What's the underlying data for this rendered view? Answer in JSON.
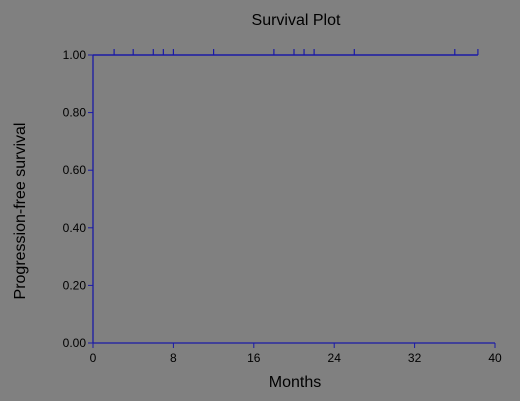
{
  "chart_data": {
    "type": "line",
    "title": "Survival Plot",
    "xlabel": "Months",
    "ylabel": "Progression-free survival",
    "xlim": [
      0,
      40
    ],
    "ylim": [
      0,
      1
    ],
    "x_ticks": [
      0,
      8,
      16,
      24,
      32,
      40
    ],
    "x_tick_labels": [
      "0",
      "8",
      "16",
      "24",
      "32",
      "40"
    ],
    "y_ticks": [
      0,
      0.2,
      0.4,
      0.6,
      0.8,
      1.0
    ],
    "y_tick_labels": [
      "0.00",
      "0.20",
      "0.40",
      "0.60",
      "0.80",
      "1.00"
    ],
    "grid": false,
    "legend": "none",
    "series": [
      {
        "x": [
          0,
          38.3
        ],
        "y": [
          1.0,
          1.0
        ],
        "censor_times": [
          2.1,
          4.0,
          6.0,
          7.0,
          8.0,
          12.0,
          18.0,
          20.0,
          21.0,
          22.0,
          26.0,
          36.0,
          38.3
        ]
      }
    ],
    "colors": {
      "line": "#1a1aa6",
      "axis": "#1a1aa6",
      "background": "#808080",
      "text": "#000000"
    }
  }
}
